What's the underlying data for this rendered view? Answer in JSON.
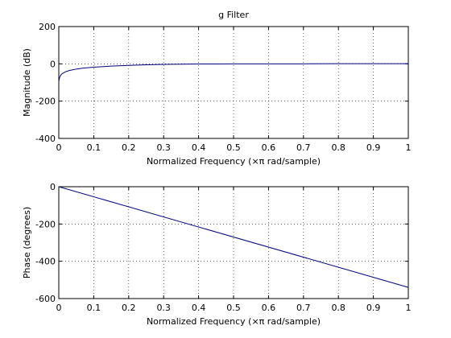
{
  "chart_data": [
    {
      "type": "line",
      "title": "g Filter",
      "xlabel": "Normalized Frequency  (×π rad/sample)",
      "ylabel": "Magnitude (dB)",
      "xlim": [
        0,
        1
      ],
      "ylim": [
        -400,
        200
      ],
      "grid": true,
      "xticks": [
        "0",
        "0.1",
        "0.2",
        "0.3",
        "0.4",
        "0.5",
        "0.6",
        "0.7",
        "0.8",
        "0.9",
        "1"
      ],
      "yticks": [
        "200",
        "0",
        "-200",
        "-400"
      ],
      "series": [
        {
          "color": "#00007f",
          "x": [
            0.0,
            0.002,
            0.005,
            0.01,
            0.02,
            0.03,
            0.05,
            0.07,
            0.1,
            0.15,
            0.2,
            0.25,
            0.3,
            0.35,
            0.4,
            0.45,
            0.5,
            0.6,
            0.7,
            0.8,
            0.9,
            1.0
          ],
          "y": [
            -95,
            -75,
            -62,
            -52,
            -42,
            -36,
            -28,
            -23,
            -18,
            -12,
            -8,
            -5,
            -3,
            -2,
            -1,
            -0.5,
            0,
            0,
            0,
            1,
            1,
            1
          ]
        }
      ]
    },
    {
      "type": "line",
      "title": "",
      "xlabel": "Normalized Frequency  (×π rad/sample)",
      "ylabel": "Phase (degrees)",
      "xlim": [
        0,
        1
      ],
      "ylim": [
        -600,
        0
      ],
      "grid": true,
      "xticks": [
        "0",
        "0.1",
        "0.2",
        "0.3",
        "0.4",
        "0.5",
        "0.6",
        "0.7",
        "0.8",
        "0.9",
        "1"
      ],
      "yticks": [
        "0",
        "-200",
        "-400",
        "-600"
      ],
      "series": [
        {
          "color": "#00007f",
          "x": [
            0,
            1
          ],
          "y": [
            0,
            -540
          ]
        }
      ]
    }
  ]
}
